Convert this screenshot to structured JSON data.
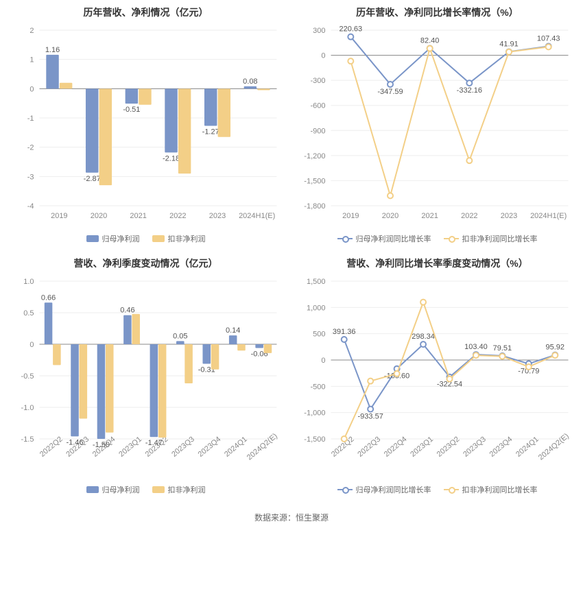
{
  "colors": {
    "seriesA": "#7a95c8",
    "seriesB": "#f3cf87",
    "grid": "#eeeeee",
    "axis": "#888888",
    "text": "#555555",
    "bg": "#ffffff"
  },
  "charts": {
    "topLeft": {
      "type": "bar",
      "title": "历年营收、净利情况（亿元）",
      "categories": [
        "2019",
        "2020",
        "2021",
        "2022",
        "2023",
        "2024H1(E)"
      ],
      "ylim": [
        -4,
        2
      ],
      "ytick_step": 1,
      "bar_width": 0.32,
      "bar_gap": 0.02,
      "series": [
        {
          "name": "归母净利润",
          "color": "#7a95c8",
          "values": [
            1.16,
            -2.87,
            -0.51,
            -2.18,
            -1.27,
            0.08
          ],
          "show_labels": [
            1.16,
            -2.87,
            -0.51,
            -2.18,
            -1.27,
            0.08
          ]
        },
        {
          "name": "扣非净利润",
          "color": "#f3cf87",
          "values": [
            0.2,
            -3.3,
            -0.55,
            -2.9,
            -1.65,
            -0.05
          ],
          "show_labels": [
            null,
            null,
            null,
            null,
            null,
            null
          ]
        }
      ],
      "legend": [
        {
          "label": "归母净利润",
          "swatch": "rect",
          "color": "#7a95c8"
        },
        {
          "label": "扣非净利润",
          "swatch": "rect",
          "color": "#f3cf87"
        }
      ]
    },
    "topRight": {
      "type": "line",
      "title": "历年营收、净利同比增长率情况（%）",
      "categories": [
        "2019",
        "2020",
        "2021",
        "2022",
        "2023",
        "2024H1(E)"
      ],
      "ylim": [
        -1800,
        300
      ],
      "ytick_step": 300,
      "point_radius": 4,
      "line_width": 2,
      "series": [
        {
          "name": "归母净利润同比增长率",
          "color": "#7a95c8",
          "values": [
            220.63,
            -347.59,
            82.4,
            -332.16,
            41.91,
            107.43
          ],
          "show_labels": [
            220.63,
            -347.59,
            82.4,
            -332.16,
            41.91,
            107.43
          ]
        },
        {
          "name": "扣非净利润同比增长率",
          "color": "#f3cf87",
          "values": [
            -70,
            -1680,
            82,
            -1260,
            40,
            100
          ],
          "show_labels": [
            null,
            null,
            null,
            null,
            null,
            null
          ]
        }
      ],
      "legend": [
        {
          "label": "归母净利润同比增长率",
          "swatch": "line",
          "color": "#7a95c8"
        },
        {
          "label": "扣非净利润同比增长率",
          "swatch": "line",
          "color": "#f3cf87"
        }
      ]
    },
    "bottomLeft": {
      "type": "bar",
      "title": "营收、净利季度变动情况（亿元）",
      "categories": [
        "2022Q2",
        "2022Q3",
        "2022Q4",
        "2023Q1",
        "2023Q2",
        "2023Q3",
        "2023Q4",
        "2024Q1",
        "2024Q2(E)"
      ],
      "ylim": [
        -1.5,
        1
      ],
      "ytick_step": 0.5,
      "bar_width": 0.3,
      "bar_gap": 0.02,
      "rotate_xticks": true,
      "series": [
        {
          "name": "归母净利润",
          "color": "#7a95c8",
          "values": [
            0.66,
            -1.46,
            -1.5,
            0.46,
            -1.47,
            0.05,
            -0.31,
            0.14,
            -0.06
          ],
          "show_labels": [
            0.66,
            -1.46,
            -1.5,
            0.46,
            -1.47,
            0.05,
            -0.31,
            0.14,
            -0.06
          ]
        },
        {
          "name": "扣非净利润",
          "color": "#f3cf87",
          "values": [
            -0.33,
            -1.18,
            -1.4,
            0.48,
            -1.48,
            -0.62,
            -0.4,
            -0.1,
            -0.14
          ],
          "show_labels": [
            null,
            null,
            null,
            null,
            null,
            null,
            null,
            null,
            null
          ]
        }
      ],
      "legend": [
        {
          "label": "归母净利润",
          "swatch": "rect",
          "color": "#7a95c8"
        },
        {
          "label": "扣非净利润",
          "swatch": "rect",
          "color": "#f3cf87"
        }
      ]
    },
    "bottomRight": {
      "type": "line",
      "title": "营收、净利同比增长率季度变动情况（%）",
      "categories": [
        "2022Q2",
        "2022Q3",
        "2022Q4",
        "2023Q1",
        "2023Q2",
        "2023Q3",
        "2023Q4",
        "2024Q1",
        "2024Q2(E)"
      ],
      "ylim": [
        -1500,
        1500
      ],
      "ytick_step": 500,
      "point_radius": 4,
      "line_width": 2,
      "rotate_xticks": true,
      "series": [
        {
          "name": "归母净利润同比增长率",
          "color": "#7a95c8",
          "values": [
            391.36,
            -933.57,
            -165.6,
            298.34,
            -322.54,
            103.4,
            79.51,
            -70.79,
            95.92
          ],
          "show_labels": [
            391.36,
            -933.57,
            -165.6,
            298.34,
            -322.54,
            103.4,
            79.51,
            -70.79,
            95.92
          ]
        },
        {
          "name": "扣非净利润同比增长率",
          "color": "#f3cf87",
          "values": [
            -1500,
            -400,
            -260,
            1100,
            -360,
            90,
            70,
            -130,
            90
          ],
          "show_labels": [
            null,
            null,
            null,
            null,
            null,
            null,
            null,
            null,
            null
          ]
        }
      ],
      "legend": [
        {
          "label": "归母净利润同比增长率",
          "swatch": "line",
          "color": "#7a95c8"
        },
        {
          "label": "扣非净利润同比增长率",
          "swatch": "line",
          "color": "#f3cf87"
        }
      ]
    }
  },
  "source_label": "数据来源：恒生聚源"
}
